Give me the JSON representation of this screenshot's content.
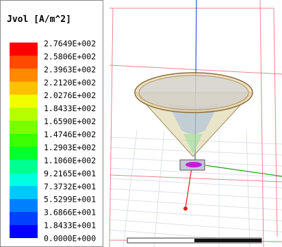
{
  "legend": {
    "title": "Jvol [A/m^2]",
    "labels": [
      "2.7649E+002",
      "2.5806E+002",
      "2.3963E+002",
      "2.2120E+002",
      "2.0276E+002",
      "1.8433E+002",
      "1.6590E+002",
      "1.4746E+002",
      "1.2903E+002",
      "1.1060E+002",
      "9.2165E+001",
      "7.3732E+001",
      "5.5299E+001",
      "3.6866E+001",
      "1.8433E+001",
      "0.0000E+000"
    ]
  }
}
